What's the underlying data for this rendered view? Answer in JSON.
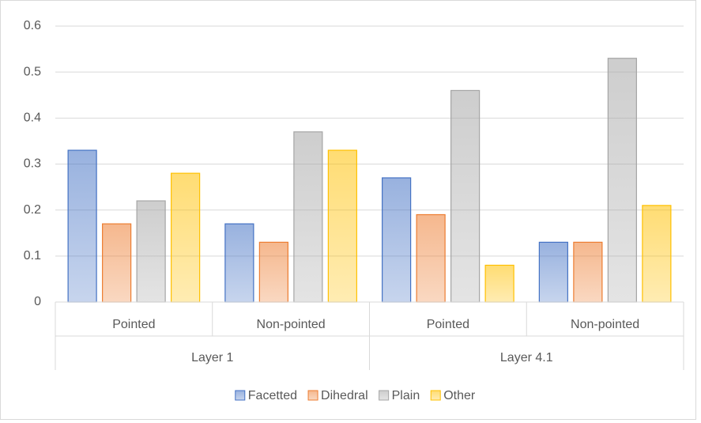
{
  "chart_data": {
    "type": "bar",
    "groups": [
      {
        "name": "Layer 1",
        "categories": [
          "Pointed",
          "Non-pointed"
        ]
      },
      {
        "name": "Layer 4.1",
        "categories": [
          "Pointed",
          "Non-pointed"
        ]
      }
    ],
    "series": [
      {
        "name": "Facetted",
        "color": "#4472c4",
        "values": [
          0.33,
          0.17,
          0.27,
          0.13
        ]
      },
      {
        "name": "Dihedral",
        "color": "#ed7d31",
        "values": [
          0.17,
          0.13,
          0.19,
          0.13
        ]
      },
      {
        "name": "Plain",
        "color": "#a5a5a5",
        "values": [
          0.22,
          0.37,
          0.46,
          0.53
        ]
      },
      {
        "name": "Other",
        "color": "#ffc000",
        "values": [
          0.28,
          0.33,
          0.08,
          0.21
        ]
      }
    ],
    "ylim": [
      0,
      0.6
    ],
    "yticks": [
      0,
      0.1,
      0.2,
      0.3,
      0.4,
      0.5,
      0.6
    ],
    "grid": true,
    "legend": "bottom"
  }
}
